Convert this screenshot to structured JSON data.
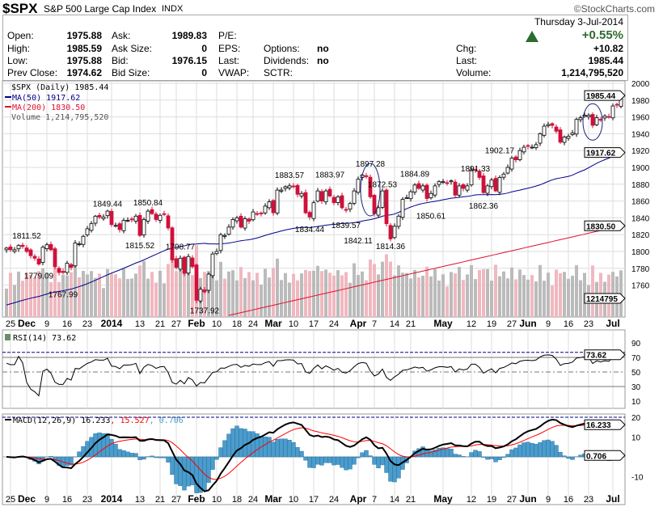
{
  "header": {
    "symbol": "$SPX",
    "name": "S&P 500 Large Cap Index",
    "exchange": "INDX",
    "brand": "©StockCharts.com",
    "date": "Thursday  3-Jul-2014",
    "pct_change": "+0.55%",
    "up_color": "#2e6b2e"
  },
  "quote": {
    "left": [
      [
        "Open:",
        "1975.88"
      ],
      [
        "High:",
        "1985.59"
      ],
      [
        "Low:",
        "1975.88"
      ],
      [
        "Prev Close:",
        "1974.62"
      ]
    ],
    "mid": [
      [
        "Ask:",
        "1989.83"
      ],
      [
        "Ask Size:",
        "0"
      ],
      [
        "Bid:",
        "1976.15"
      ],
      [
        "Bid Size:",
        "0"
      ]
    ],
    "third": [
      "P/E:",
      "EPS:",
      "Last:",
      "VWAP:"
    ],
    "fourth": [
      [
        "",
        ""
      ],
      [
        "Options:",
        "no"
      ],
      [
        "Dividends:",
        "no"
      ],
      [
        "SCTR:",
        ""
      ]
    ],
    "right": [
      [
        "Chg:",
        "+10.82"
      ],
      [
        "Last:",
        "1985.44"
      ],
      [
        "Volume:",
        "1,214,795,520"
      ]
    ]
  },
  "legend": {
    "price": "$SPX (Daily) 1985.44",
    "ma50": "MA(50) 1917.62",
    "ma200": "MA(200) 1830.50",
    "volume": "Volume 1,214,795,520",
    "rsi": "RSI(14) 73.62",
    "macd": "MACD(12,26,9) 16.233",
    "macd_signal": ", 15.527",
    "macd_hist": ", 0.706"
  },
  "chart_data": {
    "type": "candlestick",
    "price_axis": {
      "ticks": [
        2000,
        1980,
        1960,
        1940,
        1920,
        1900,
        1880,
        1860,
        1840,
        1820,
        1800,
        1780,
        1760
      ],
      "last": "1985.44",
      "ma50_last": "1917.62",
      "ma200_last": "1830.50",
      "volume_last": "1214795"
    },
    "rsi_axis": {
      "ticks": [
        90,
        70,
        50,
        30,
        10
      ],
      "last": "73.62"
    },
    "macd_axis": {
      "ticks": [
        20,
        10,
        -10
      ],
      "last": "16.233",
      "hist_last": "0.706"
    },
    "colors": {
      "ma50": "#00008b",
      "ma200": "#e0102f",
      "down": "#d0103a",
      "volume_up": "#bbbbbb",
      "volume_down": "#f0b8bf",
      "macd": "#000000",
      "signal": "#ff0000",
      "hist": "#4a9ccc",
      "ellipse": "#1a237e"
    },
    "date_ticks": [
      [
        "25",
        "2013-11-25",
        0
      ],
      [
        "Dec",
        "2013-12-02",
        1
      ],
      [
        "9",
        "2013-12-09",
        0
      ],
      [
        "16",
        "2013-12-16",
        0
      ],
      [
        "23",
        "2013-12-23",
        0
      ],
      [
        "2014",
        "2014-01-02",
        1
      ],
      [
        "13",
        "2014-01-13",
        0
      ],
      [
        "21",
        "2014-01-21",
        0
      ],
      [
        "27",
        "2014-01-27",
        0
      ],
      [
        "Feb",
        "2014-02-03",
        1
      ],
      [
        "10",
        "2014-02-10",
        0
      ],
      [
        "18",
        "2014-02-18",
        0
      ],
      [
        "24",
        "2014-02-24",
        0
      ],
      [
        "Mar",
        "2014-03-03",
        1
      ],
      [
        "10",
        "2014-03-10",
        0
      ],
      [
        "17",
        "2014-03-17",
        0
      ],
      [
        "24",
        "2014-03-24",
        0
      ],
      [
        "Apr",
        "2014-04-01",
        1
      ],
      [
        "7",
        "2014-04-07",
        0
      ],
      [
        "14",
        "2014-04-14",
        0
      ],
      [
        "21",
        "2014-04-21",
        0
      ],
      [
        "May",
        "2014-05-01",
        1
      ],
      [
        "12",
        "2014-05-12",
        0
      ],
      [
        "19",
        "2014-05-19",
        0
      ],
      [
        "27",
        "2014-05-27",
        0
      ],
      [
        "Jun",
        "2014-06-02",
        1
      ],
      [
        "9",
        "2014-06-09",
        0
      ],
      [
        "16",
        "2014-06-16",
        0
      ],
      [
        "23",
        "2014-06-23",
        0
      ],
      [
        "Jul",
        "2014-07-01",
        1
      ]
    ],
    "annotations": [
      [
        "1811.52",
        "2013-12-02",
        "above"
      ],
      [
        "1779.09",
        "2013-12-05",
        "below"
      ],
      [
        "1767.99",
        "2013-12-13",
        "below"
      ],
      [
        "1849.44",
        "2013-12-31",
        "above"
      ],
      [
        "1815.52",
        "2014-01-13",
        "below"
      ],
      [
        "1850.84",
        "2014-01-15",
        "above"
      ],
      [
        "1798.77",
        "2014-01-28",
        "above"
      ],
      [
        "1737.92",
        "2014-02-05",
        "below"
      ],
      [
        "1883.57",
        "2014-03-07",
        "above"
      ],
      [
        "1834.44",
        "2014-03-14",
        "below"
      ],
      [
        "1883.97",
        "2014-03-21",
        "above"
      ],
      [
        "1839.57",
        "2014-03-27",
        "below"
      ],
      [
        "1842.11",
        "2014-04-01",
        "below"
      ],
      [
        "1897.28",
        "2014-04-04",
        "above"
      ],
      [
        "1872.53",
        "2014-04-09",
        "above"
      ],
      [
        "1814.36",
        "2014-04-11",
        "below"
      ],
      [
        "1884.89",
        "2014-04-22",
        "above"
      ],
      [
        "1850.61",
        "2014-04-28",
        "below"
      ],
      [
        "1891.33",
        "2014-05-13",
        "above"
      ],
      [
        "1862.36",
        "2014-05-15",
        "below"
      ],
      [
        "1902.17",
        "2014-05-21",
        "above"
      ]
    ],
    "ellipses": [
      [
        "2014-04-04",
        1897,
        1850
      ],
      [
        "2014-06-24",
        1968,
        1940
      ]
    ],
    "closes": [
      [
        "2013-11-22",
        1804
      ],
      [
        "2013-11-25",
        1802
      ],
      [
        "2013-11-26",
        1802
      ],
      [
        "2013-11-27",
        1807
      ],
      [
        "2013-11-29",
        1806
      ],
      [
        "2013-12-02",
        1800
      ],
      [
        "2013-12-03",
        1795
      ],
      [
        "2013-12-04",
        1792
      ],
      [
        "2013-12-05",
        1785
      ],
      [
        "2013-12-06",
        1805
      ],
      [
        "2013-12-09",
        1808
      ],
      [
        "2013-12-10",
        1802
      ],
      [
        "2013-12-11",
        1782
      ],
      [
        "2013-12-12",
        1775
      ],
      [
        "2013-12-13",
        1775
      ],
      [
        "2013-12-16",
        1786
      ],
      [
        "2013-12-17",
        1781
      ],
      [
        "2013-12-18",
        1810
      ],
      [
        "2013-12-19",
        1809
      ],
      [
        "2013-12-20",
        1818
      ],
      [
        "2013-12-23",
        1827
      ],
      [
        "2013-12-24",
        1833
      ],
      [
        "2013-12-26",
        1842
      ],
      [
        "2013-12-27",
        1841
      ],
      [
        "2013-12-30",
        1841
      ],
      [
        "2013-12-31",
        1848
      ],
      [
        "2014-01-02",
        1832
      ],
      [
        "2014-01-03",
        1831
      ],
      [
        "2014-01-06",
        1826
      ],
      [
        "2014-01-07",
        1837
      ],
      [
        "2014-01-08",
        1837
      ],
      [
        "2014-01-09",
        1838
      ],
      [
        "2014-01-10",
        1842
      ],
      [
        "2014-01-13",
        1819
      ],
      [
        "2014-01-14",
        1838
      ],
      [
        "2014-01-15",
        1848
      ],
      [
        "2014-01-16",
        1845
      ],
      [
        "2014-01-17",
        1838
      ],
      [
        "2014-01-21",
        1843
      ],
      [
        "2014-01-22",
        1844
      ],
      [
        "2014-01-23",
        1828
      ],
      [
        "2014-01-24",
        1790
      ],
      [
        "2014-01-27",
        1781
      ],
      [
        "2014-01-28",
        1792
      ],
      [
        "2014-01-29",
        1774
      ],
      [
        "2014-01-30",
        1794
      ],
      [
        "2014-01-31",
        1782
      ],
      [
        "2014-02-03",
        1742
      ],
      [
        "2014-02-04",
        1755
      ],
      [
        "2014-02-05",
        1752
      ],
      [
        "2014-02-06",
        1773
      ],
      [
        "2014-02-07",
        1797
      ],
      [
        "2014-02-10",
        1800
      ],
      [
        "2014-02-11",
        1820
      ],
      [
        "2014-02-12",
        1819
      ],
      [
        "2014-02-13",
        1829
      ],
      [
        "2014-02-14",
        1838
      ],
      [
        "2014-02-18",
        1840
      ],
      [
        "2014-02-19",
        1829
      ],
      [
        "2014-02-20",
        1839
      ],
      [
        "2014-02-21",
        1836
      ],
      [
        "2014-02-24",
        1847
      ],
      [
        "2014-02-25",
        1845
      ],
      [
        "2014-02-26",
        1845
      ],
      [
        "2014-02-27",
        1854
      ],
      [
        "2014-02-28",
        1859
      ],
      [
        "2014-03-03",
        1846
      ],
      [
        "2014-03-04",
        1873
      ],
      [
        "2014-03-05",
        1873
      ],
      [
        "2014-03-06",
        1877
      ],
      [
        "2014-03-07",
        1878
      ],
      [
        "2014-03-10",
        1877
      ],
      [
        "2014-03-11",
        1868
      ],
      [
        "2014-03-12",
        1869
      ],
      [
        "2014-03-13",
        1846
      ],
      [
        "2014-03-14",
        1841
      ],
      [
        "2014-03-17",
        1858
      ],
      [
        "2014-03-18",
        1872
      ],
      [
        "2014-03-19",
        1860
      ],
      [
        "2014-03-20",
        1872
      ],
      [
        "2014-03-21",
        1866
      ],
      [
        "2014-03-24",
        1858
      ],
      [
        "2014-03-25",
        1865
      ],
      [
        "2014-03-26",
        1852
      ],
      [
        "2014-03-27",
        1849
      ],
      [
        "2014-03-28",
        1857
      ],
      [
        "2014-03-31",
        1872
      ],
      [
        "2014-04-01",
        1886
      ],
      [
        "2014-04-02",
        1891
      ],
      [
        "2014-04-03",
        1889
      ],
      [
        "2014-04-04",
        1865
      ],
      [
        "2014-04-07",
        1845
      ],
      [
        "2014-04-08",
        1852
      ],
      [
        "2014-04-09",
        1872
      ],
      [
        "2014-04-10",
        1833
      ],
      [
        "2014-04-11",
        1815
      ],
      [
        "2014-04-14",
        1830
      ],
      [
        "2014-04-15",
        1842
      ],
      [
        "2014-04-16",
        1862
      ],
      [
        "2014-04-17",
        1864
      ],
      [
        "2014-04-21",
        1871
      ],
      [
        "2014-04-22",
        1879
      ],
      [
        "2014-04-23",
        1875
      ],
      [
        "2014-04-24",
        1878
      ],
      [
        "2014-04-25",
        1863
      ],
      [
        "2014-04-28",
        1869
      ],
      [
        "2014-04-29",
        1878
      ],
      [
        "2014-04-30",
        1883
      ],
      [
        "2014-05-01",
        1883
      ],
      [
        "2014-05-02",
        1881
      ],
      [
        "2014-05-05",
        1884
      ],
      [
        "2014-05-06",
        1867
      ],
      [
        "2014-05-07",
        1878
      ],
      [
        "2014-05-08",
        1875
      ],
      [
        "2014-05-09",
        1878
      ],
      [
        "2014-05-12",
        1897
      ],
      [
        "2014-05-13",
        1897
      ],
      [
        "2014-05-14",
        1888
      ],
      [
        "2014-05-15",
        1870
      ],
      [
        "2014-05-16",
        1878
      ],
      [
        "2014-05-19",
        1885
      ],
      [
        "2014-05-20",
        1872
      ],
      [
        "2014-05-21",
        1888
      ],
      [
        "2014-05-22",
        1892
      ],
      [
        "2014-05-23",
        1900
      ],
      [
        "2014-05-27",
        1911
      ],
      [
        "2014-05-28",
        1909
      ],
      [
        "2014-05-29",
        1920
      ],
      [
        "2014-05-30",
        1924
      ],
      [
        "2014-06-02",
        1925
      ],
      [
        "2014-06-03",
        1924
      ],
      [
        "2014-06-04",
        1927
      ],
      [
        "2014-06-05",
        1940
      ],
      [
        "2014-06-06",
        1949
      ],
      [
        "2014-06-09",
        1951
      ],
      [
        "2014-06-10",
        1950
      ],
      [
        "2014-06-11",
        1943
      ],
      [
        "2014-06-12",
        1930
      ],
      [
        "2014-06-13",
        1936
      ],
      [
        "2014-06-16",
        1937
      ],
      [
        "2014-06-17",
        1941
      ],
      [
        "2014-06-18",
        1957
      ],
      [
        "2014-06-19",
        1959
      ],
      [
        "2014-06-20",
        1962
      ],
      [
        "2014-06-23",
        1962
      ],
      [
        "2014-06-24",
        1950
      ],
      [
        "2014-06-25",
        1959
      ],
      [
        "2014-06-26",
        1957
      ],
      [
        "2014-06-27",
        1961
      ],
      [
        "2014-06-30",
        1960
      ],
      [
        "2014-07-01",
        1973
      ],
      [
        "2014-07-02",
        1974
      ],
      [
        "2014-07-03",
        1985
      ]
    ]
  }
}
